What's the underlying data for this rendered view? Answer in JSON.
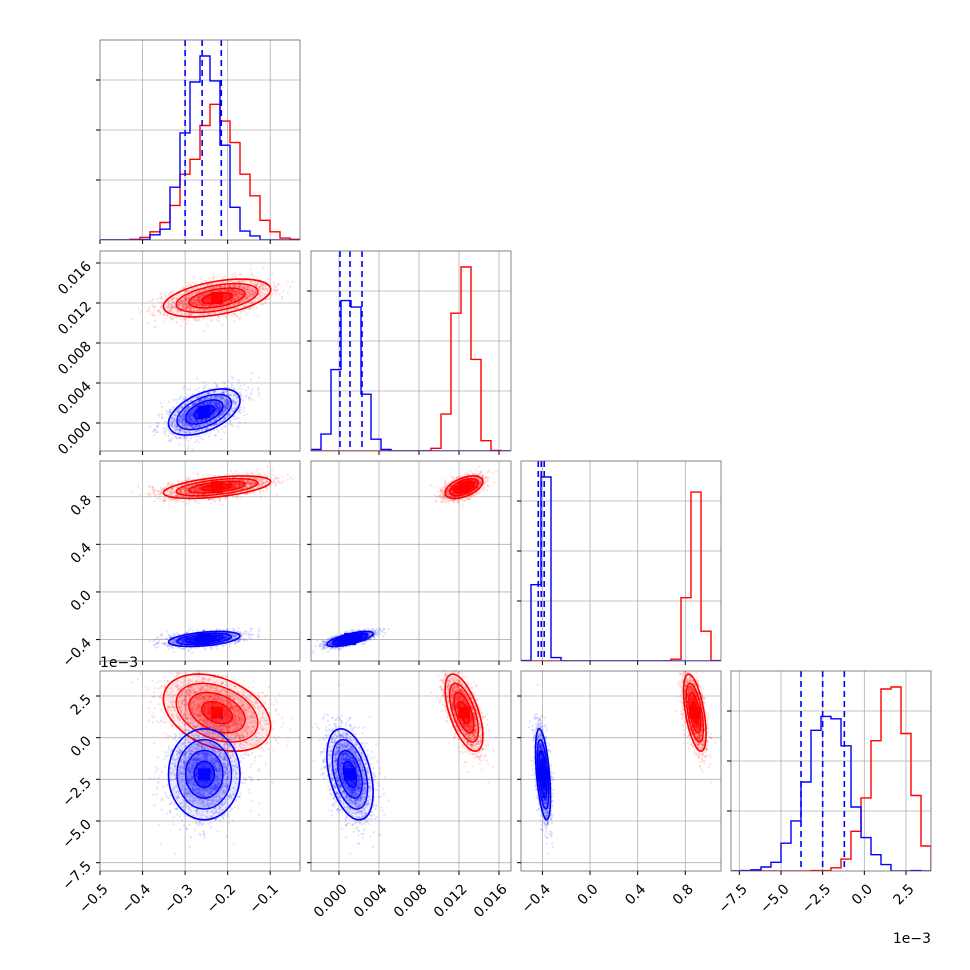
{
  "chart_data": {
    "type": "corner",
    "grid": true,
    "colors": {
      "red": "#ff0000",
      "blue": "#0000ff"
    },
    "series": [
      {
        "color": "#ff0000",
        "mean": [
          -0.225,
          0.0125,
          0.88,
          1.5
        ],
        "sd": [
          0.06,
          0.0009,
          0.045,
          1.1
        ],
        "corr": [
          [
            1,
            0.45,
            0.5,
            -0.35
          ],
          [
            0.45,
            1,
            0.5,
            -0.6
          ],
          [
            0.5,
            0.5,
            1,
            -0.55
          ],
          [
            -0.35,
            -0.6,
            -0.55,
            1
          ]
        ]
      },
      {
        "color": "#0000ff",
        "mean": [
          -0.255,
          0.0011,
          -0.395,
          -2.2
        ],
        "sd": [
          0.04,
          0.0011,
          0.03,
          1.3
        ],
        "corr": [
          [
            1,
            0.5,
            0.4,
            0.0
          ],
          [
            0.5,
            1,
            0.7,
            -0.4
          ],
          [
            0.4,
            0.7,
            1,
            -0.5
          ],
          [
            0.0,
            -0.4,
            -0.5,
            1
          ]
        ]
      }
    ],
    "quantile_lines": [
      [
        -0.3,
        -0.26,
        -0.215
      ],
      [
        0.0001,
        0.0011,
        0.0023
      ],
      [
        -0.435,
        -0.41,
        -0.385
      ],
      [
        -3.8,
        -2.5,
        -1.2
      ]
    ],
    "axes": [
      {
        "range": [
          -0.5,
          -0.03
        ],
        "ticks": [
          -0.5,
          -0.4,
          -0.3,
          -0.2,
          -0.1
        ],
        "tick_labels": [
          "−0.5",
          "−0.4",
          "−0.3",
          "−0.2",
          "−0.1"
        ],
        "offset": ""
      },
      {
        "range": [
          -0.0028,
          0.0172
        ],
        "ticks": [
          0.0,
          0.004,
          0.008,
          0.012,
          0.016
        ],
        "tick_labels": [
          "0.000",
          "0.004",
          "0.008",
          "0.012",
          "0.016"
        ],
        "offset": ""
      },
      {
        "range": [
          -0.58,
          1.1
        ],
        "ticks": [
          -0.4,
          0.0,
          0.4,
          0.8
        ],
        "tick_labels": [
          "−0.4",
          "0.0",
          "0.4",
          "0.8"
        ],
        "offset": ""
      },
      {
        "range": [
          -8.0,
          4.0
        ],
        "ticks": [
          -7.5,
          -5.0,
          -2.5,
          0.0,
          2.5
        ],
        "tick_labels": [
          "−7.5",
          "−5.0",
          "−2.5",
          "0.0",
          "2.5"
        ],
        "offset": "1e−3"
      }
    ],
    "y_axes_left": [
      {
        "row": 1,
        "ticks": [
          0.0,
          0.004,
          0.008,
          0.012,
          0.016
        ],
        "tick_labels": [
          "0.000",
          "0.004",
          "0.008",
          "0.012",
          "0.016"
        ],
        "offset": ""
      },
      {
        "row": 2,
        "ticks": [
          -0.4,
          0.0,
          0.4,
          0.8
        ],
        "tick_labels": [
          "−0.4",
          "0.0",
          "0.4",
          "0.8"
        ],
        "offset": ""
      },
      {
        "row": 3,
        "ticks": [
          -7.5,
          -5.0,
          -2.5,
          0.0,
          2.5
        ],
        "tick_labels": [
          "−7.5",
          "−5.0",
          "−2.5",
          "0.0",
          "2.5"
        ],
        "offset": "1e−3"
      }
    ]
  }
}
